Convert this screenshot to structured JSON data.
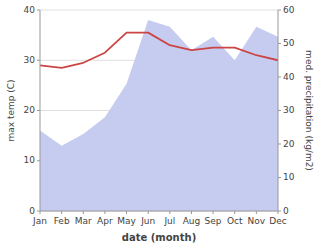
{
  "chart_data": {
    "type": "line",
    "xlabel": "date (month)",
    "ylabel": "max temp (C)",
    "y2label": "med. precipitation (kg/m2)",
    "categories": [
      "Jan",
      "Feb",
      "Mar",
      "Apr",
      "May",
      "Jun",
      "Jul",
      "Aug",
      "Sep",
      "Oct",
      "Nov",
      "Dec"
    ],
    "series": [
      {
        "type": "area",
        "axis": "y2",
        "color": "#c5ccf0",
        "values": [
          24.0,
          19.5,
          23.0,
          28.0,
          38.0,
          57.0,
          55.0,
          48.0,
          52.0,
          45.0,
          55.0,
          52.0
        ]
      },
      {
        "type": "line",
        "color": "#cc4444",
        "values": [
          29.0,
          28.5,
          29.5,
          31.5,
          35.5,
          35.5,
          33.0,
          32.0,
          32.5,
          32.5,
          31.0,
          30.0
        ]
      }
    ],
    "ylim": [
      0,
      40
    ],
    "yticks": [
      0,
      10,
      20,
      30,
      40
    ],
    "y2lim": [
      0,
      60
    ],
    "y2ticks": [
      0,
      10,
      20,
      30,
      40,
      50,
      60
    ],
    "grid": true
  }
}
